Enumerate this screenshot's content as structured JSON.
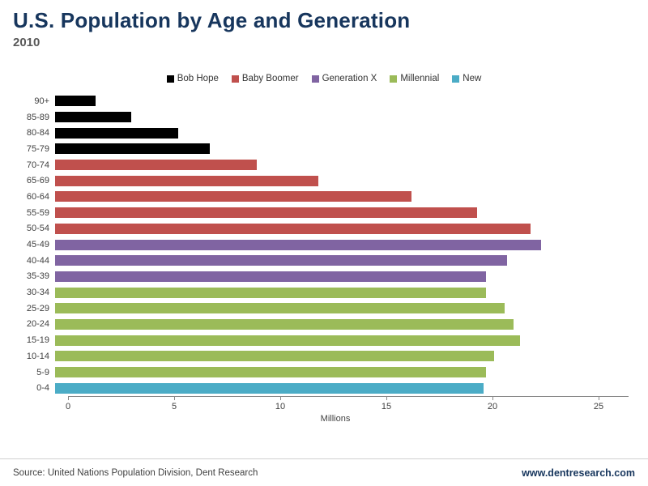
{
  "header": {
    "title": "U.S. Population by Age and Generation",
    "subtitle": "2010"
  },
  "footer": {
    "source": "Source: United Nations Population Division, Dent Research",
    "website": "www.dentresearch.com"
  },
  "chart_data": {
    "type": "bar",
    "orientation": "horizontal",
    "title": "U.S. Population by Age and Generation",
    "subtitle": "2010",
    "xlabel": "Millions",
    "xlim": [
      0,
      26
    ],
    "x_ticks": [
      0,
      5,
      10,
      15,
      20,
      25
    ],
    "grid": false,
    "legend_position": "top-center",
    "legend": [
      {
        "label": "Bob Hope",
        "color": "#000000"
      },
      {
        "label": "Baby Boomer",
        "color": "#c0504d"
      },
      {
        "label": "Generation X",
        "color": "#8064a2"
      },
      {
        "label": "Millennial",
        "color": "#9bbb59"
      },
      {
        "label": "New",
        "color": "#4bacc6"
      }
    ],
    "categories": [
      "90+",
      "85-89",
      "80-84",
      "75-79",
      "70-74",
      "65-69",
      "60-64",
      "55-59",
      "50-54",
      "45-49",
      "40-44",
      "35-39",
      "30-34",
      "25-29",
      "20-24",
      "15-19",
      "10-14",
      "5-9",
      "0-4"
    ],
    "values": [
      1.9,
      3.6,
      5.8,
      7.3,
      9.5,
      12.4,
      16.8,
      19.9,
      22.4,
      22.9,
      21.3,
      20.3,
      20.3,
      21.2,
      21.6,
      21.9,
      20.7,
      20.3,
      20.2
    ],
    "generations": [
      "Bob Hope",
      "Bob Hope",
      "Bob Hope",
      "Bob Hope",
      "Baby Boomer",
      "Baby Boomer",
      "Baby Boomer",
      "Baby Boomer",
      "Baby Boomer",
      "Generation X",
      "Generation X",
      "Generation X",
      "Millennial",
      "Millennial",
      "Millennial",
      "Millennial",
      "Millennial",
      "Millennial",
      "New"
    ]
  }
}
